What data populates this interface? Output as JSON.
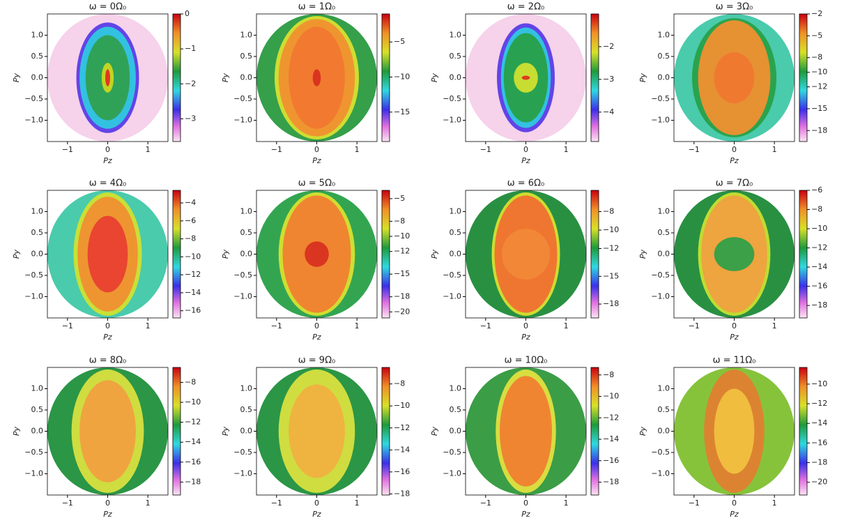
{
  "chart_data": [
    {
      "type": "heatmap",
      "title": "ω = 0Ω₀",
      "xlabel": "Pz",
      "ylabel": "Py",
      "xlim": [
        -1.5,
        1.5
      ],
      "ylim": [
        -1.5,
        1.5
      ],
      "xticks": [
        {
          "value": -1,
          "label": "−1"
        },
        0,
        1
      ],
      "yticks": [
        {
          "value": -1,
          "label": "−1.0"
        },
        {
          "value": -0.5,
          "label": "−0.5"
        },
        {
          "value": 0,
          "label": "0.0"
        },
        {
          "value": 0.5,
          "label": "0.5"
        },
        {
          "value": 1,
          "label": "1.0"
        }
      ],
      "clim": [
        -3.65,
        0
      ],
      "cticks": [
        0,
        {
          "value": -1,
          "label": "−1"
        },
        {
          "value": -2,
          "label": "−2"
        },
        {
          "value": -3,
          "label": "−3"
        }
      ]
    },
    {
      "type": "heatmap",
      "title": "ω = 1Ω₀",
      "xlabel": "Pz",
      "ylabel": "Py",
      "xlim": [
        -1.5,
        1.5
      ],
      "ylim": [
        -1.5,
        1.5
      ],
      "xticks": [
        {
          "value": -1,
          "label": "−1"
        },
        0,
        1
      ],
      "yticks": [
        {
          "value": -1,
          "label": "−1.0"
        },
        {
          "value": -0.5,
          "label": "−0.5"
        },
        {
          "value": 0,
          "label": "0.0"
        },
        {
          "value": 0.5,
          "label": "0.5"
        },
        {
          "value": 1,
          "label": "1.0"
        }
      ],
      "clim": [
        -19.2,
        -1
      ],
      "cticks": [
        {
          "value": -5,
          "label": "−5"
        },
        {
          "value": -10,
          "label": "−10"
        },
        {
          "value": -15,
          "label": "−15"
        }
      ]
    },
    {
      "type": "heatmap",
      "title": "ω = 2Ω₀",
      "xlabel": "Pz",
      "ylabel": "Py",
      "xlim": [
        -1.5,
        1.5
      ],
      "ylim": [
        -1.5,
        1.5
      ],
      "xticks": [
        {
          "value": -1,
          "label": "−1"
        },
        0,
        1
      ],
      "yticks": [
        {
          "value": -1,
          "label": "−1.0"
        },
        {
          "value": -0.5,
          "label": "−0.5"
        },
        {
          "value": 0,
          "label": "0.0"
        },
        {
          "value": 0.5,
          "label": "0.5"
        },
        {
          "value": 1,
          "label": "1.0"
        }
      ],
      "clim": [
        -4.9,
        -1
      ],
      "cticks": [
        {
          "value": -2,
          "label": "−2"
        },
        {
          "value": -3,
          "label": "−3"
        },
        {
          "value": -4,
          "label": "−4"
        }
      ]
    },
    {
      "type": "heatmap",
      "title": "ω = 3Ω₀",
      "xlabel": "Pz",
      "ylabel": "Py",
      "xlim": [
        -1.5,
        1.5
      ],
      "ylim": [
        -1.5,
        1.5
      ],
      "xticks": [
        {
          "value": -1,
          "label": "−1"
        },
        0,
        1
      ],
      "yticks": [
        {
          "value": -1,
          "label": "−1.0"
        },
        {
          "value": -0.5,
          "label": "−0.5"
        },
        {
          "value": 0,
          "label": "0.0"
        },
        {
          "value": 0.5,
          "label": "0.5"
        },
        {
          "value": 1,
          "label": "1.0"
        }
      ],
      "clim": [
        -19.5,
        -2
      ],
      "cticks": [
        {
          "value": -2,
          "label": "−2"
        },
        {
          "value": -5,
          "label": "−5"
        },
        {
          "value": -8,
          "label": "−8"
        },
        {
          "value": -10,
          "label": "−10"
        },
        {
          "value": -12,
          "label": "−12"
        },
        {
          "value": -15,
          "label": "−15"
        },
        {
          "value": -18,
          "label": "−18"
        }
      ]
    },
    {
      "type": "heatmap",
      "title": "ω = 4Ω₀",
      "xlabel": "Pz",
      "ylabel": "Py",
      "xlim": [
        -1.5,
        1.5
      ],
      "ylim": [
        -1.5,
        1.5
      ],
      "xticks": [
        {
          "value": -1,
          "label": "−1"
        },
        0,
        1
      ],
      "yticks": [
        {
          "value": -1,
          "label": "−1.0"
        },
        {
          "value": -0.5,
          "label": "−0.5"
        },
        {
          "value": 0,
          "label": "0.0"
        },
        {
          "value": 0.5,
          "label": "0.5"
        },
        {
          "value": 1,
          "label": "1.0"
        }
      ],
      "clim": [
        -16.8,
        -2.6
      ],
      "cticks": [
        {
          "value": -4,
          "label": "−4"
        },
        {
          "value": -6,
          "label": "−6"
        },
        {
          "value": -8,
          "label": "−8"
        },
        {
          "value": -10,
          "label": "−10"
        },
        {
          "value": -12,
          "label": "−12"
        },
        {
          "value": -14,
          "label": "−14"
        },
        {
          "value": -16,
          "label": "−16"
        }
      ]
    },
    {
      "type": "heatmap",
      "title": "ω = 5Ω₀",
      "xlabel": "Pz",
      "ylabel": "Py",
      "xlim": [
        -1.5,
        1.5
      ],
      "ylim": [
        -1.5,
        1.5
      ],
      "xticks": [
        {
          "value": -1,
          "label": "−1"
        },
        0,
        1
      ],
      "yticks": [
        {
          "value": -1,
          "label": "−1.0"
        },
        {
          "value": -0.5,
          "label": "−0.5"
        },
        {
          "value": 0,
          "label": "0.0"
        },
        {
          "value": 0.5,
          "label": "0.5"
        },
        {
          "value": 1,
          "label": "1.0"
        }
      ],
      "clim": [
        -20.8,
        -3.9
      ],
      "cticks": [
        {
          "value": -5,
          "label": "−5"
        },
        {
          "value": -8,
          "label": "−8"
        },
        {
          "value": -10,
          "label": "−10"
        },
        {
          "value": -12,
          "label": "−12"
        },
        {
          "value": -15,
          "label": "−15"
        },
        {
          "value": -18,
          "label": "−18"
        },
        {
          "value": -20,
          "label": "−20"
        }
      ]
    },
    {
      "type": "heatmap",
      "title": "ω = 6Ω₀",
      "xlabel": "Pz",
      "ylabel": "Py",
      "xlim": [
        -1.5,
        1.5
      ],
      "ylim": [
        -1.5,
        1.5
      ],
      "xticks": [
        {
          "value": -1,
          "label": "−1"
        },
        0,
        1
      ],
      "yticks": [
        {
          "value": -1,
          "label": "−1.0"
        },
        {
          "value": -0.5,
          "label": "−0.5"
        },
        {
          "value": 0,
          "label": "0.0"
        },
        {
          "value": 0.5,
          "label": "0.5"
        },
        {
          "value": 1,
          "label": "1.0"
        }
      ],
      "clim": [
        -19.5,
        -5.7
      ],
      "cticks": [
        {
          "value": -8,
          "label": "−8"
        },
        {
          "value": -10,
          "label": "−10"
        },
        {
          "value": -12,
          "label": "−12"
        },
        {
          "value": -15,
          "label": "−15"
        },
        {
          "value": -18,
          "label": "−18"
        }
      ]
    },
    {
      "type": "heatmap",
      "title": "ω = 7Ω₀",
      "xlabel": "Pz",
      "ylabel": "Py",
      "xlim": [
        -1.5,
        1.5
      ],
      "ylim": [
        -1.5,
        1.5
      ],
      "xticks": [
        {
          "value": -1,
          "label": "−1"
        },
        0,
        1
      ],
      "yticks": [
        {
          "value": -1,
          "label": "−1.0"
        },
        {
          "value": -0.5,
          "label": "−0.5"
        },
        {
          "value": 0,
          "label": "0.0"
        },
        {
          "value": 0.5,
          "label": "0.5"
        },
        {
          "value": 1,
          "label": "1.0"
        }
      ],
      "clim": [
        -19.3,
        -6
      ],
      "cticks": [
        {
          "value": -6,
          "label": "−6"
        },
        {
          "value": -8,
          "label": "−8"
        },
        {
          "value": -10,
          "label": "−10"
        },
        {
          "value": -12,
          "label": "−12"
        },
        {
          "value": -14,
          "label": "−14"
        },
        {
          "value": -16,
          "label": "−16"
        },
        {
          "value": -18,
          "label": "−18"
        }
      ]
    },
    {
      "type": "heatmap",
      "title": "ω = 8Ω₀",
      "xlabel": "Pz",
      "ylabel": "Py",
      "xlim": [
        -1.5,
        1.5
      ],
      "ylim": [
        -1.5,
        1.5
      ],
      "xticks": [
        {
          "value": -1,
          "label": "−1"
        },
        0,
        1
      ],
      "yticks": [
        {
          "value": -1,
          "label": "−1.0"
        },
        {
          "value": -0.5,
          "label": "−0.5"
        },
        {
          "value": 0,
          "label": "0.0"
        },
        {
          "value": 0.5,
          "label": "0.5"
        },
        {
          "value": 1,
          "label": "1.0"
        }
      ],
      "clim": [
        -19.3,
        -6.5
      ],
      "cticks": [
        {
          "value": -8,
          "label": "−8"
        },
        {
          "value": -10,
          "label": "−10"
        },
        {
          "value": -12,
          "label": "−12"
        },
        {
          "value": -14,
          "label": "−14"
        },
        {
          "value": -16,
          "label": "−16"
        },
        {
          "value": -18,
          "label": "−18"
        }
      ]
    },
    {
      "type": "heatmap",
      "title": "ω = 9Ω₀",
      "xlabel": "Pz",
      "ylabel": "Py",
      "xlim": [
        -1.5,
        1.5
      ],
      "ylim": [
        -1.5,
        1.5
      ],
      "xticks": [
        {
          "value": -1,
          "label": "−1"
        },
        0,
        1
      ],
      "yticks": [
        {
          "value": -1,
          "label": "−1.0"
        },
        {
          "value": -0.5,
          "label": "−0.5"
        },
        {
          "value": 0,
          "label": "0.0"
        },
        {
          "value": 0.5,
          "label": "0.5"
        },
        {
          "value": 1,
          "label": "1.0"
        }
      ],
      "clim": [
        -18.1,
        -6.5
      ],
      "cticks": [
        {
          "value": -8,
          "label": "−8"
        },
        {
          "value": -10,
          "label": "−10"
        },
        {
          "value": -12,
          "label": "−12"
        },
        {
          "value": -14,
          "label": "−14"
        },
        {
          "value": -16,
          "label": "−16"
        },
        {
          "value": -18,
          "label": "−18"
        }
      ]
    },
    {
      "type": "heatmap",
      "title": "ω = 10Ω₀",
      "xlabel": "Pz",
      "ylabel": "Py",
      "xlim": [
        -1.5,
        1.5
      ],
      "ylim": [
        -1.5,
        1.5
      ],
      "xticks": [
        {
          "value": -1,
          "label": "−1"
        },
        0,
        1
      ],
      "yticks": [
        {
          "value": -1,
          "label": "−1.0"
        },
        {
          "value": -0.5,
          "label": "−0.5"
        },
        {
          "value": 0,
          "label": "0.0"
        },
        {
          "value": 0.5,
          "label": "0.5"
        },
        {
          "value": 1,
          "label": "1.0"
        }
      ],
      "clim": [
        -19.2,
        -7.3
      ],
      "cticks": [
        {
          "value": -8,
          "label": "−8"
        },
        {
          "value": -10,
          "label": "−10"
        },
        {
          "value": -12,
          "label": "−12"
        },
        {
          "value": -14,
          "label": "−14"
        },
        {
          "value": -16,
          "label": "−16"
        },
        {
          "value": -18,
          "label": "−18"
        }
      ]
    },
    {
      "type": "heatmap",
      "title": "ω = 11Ω₀",
      "xlabel": "Pz",
      "ylabel": "Py",
      "xlim": [
        -1.5,
        1.5
      ],
      "ylim": [
        -1.5,
        1.5
      ],
      "xticks": [
        {
          "value": -1,
          "label": "−1"
        },
        0,
        1
      ],
      "yticks": [
        {
          "value": -1,
          "label": "−1.0"
        },
        {
          "value": -0.5,
          "label": "−0.5"
        },
        {
          "value": 0,
          "label": "0.0"
        },
        {
          "value": 0.5,
          "label": "0.5"
        },
        {
          "value": 1,
          "label": "1.0"
        }
      ],
      "clim": [
        -21.3,
        -8.3
      ],
      "cticks": [
        {
          "value": -10,
          "label": "−10"
        },
        {
          "value": -12,
          "label": "−12"
        },
        {
          "value": -14,
          "label": "−14"
        },
        {
          "value": -16,
          "label": "−16"
        },
        {
          "value": -18,
          "label": "−18"
        },
        {
          "value": -20,
          "label": "−20"
        }
      ]
    }
  ]
}
